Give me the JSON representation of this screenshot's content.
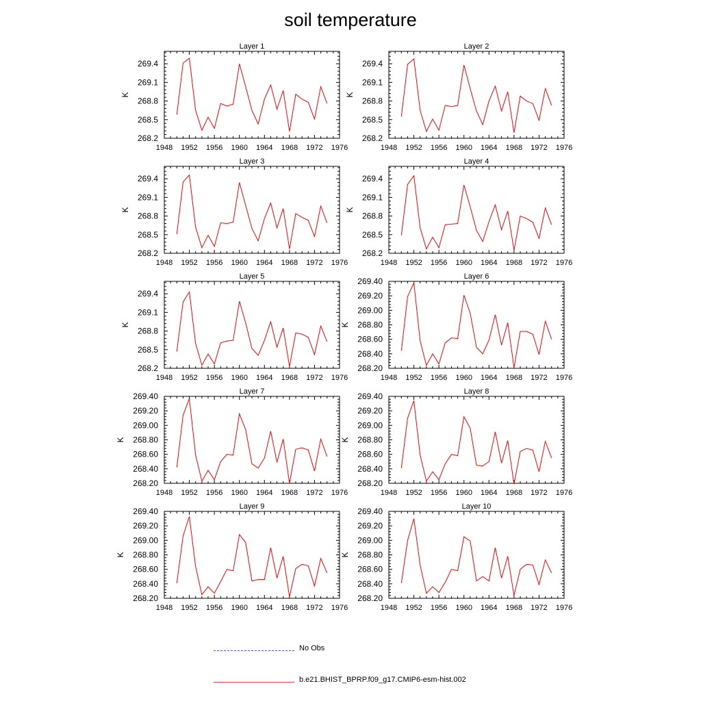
{
  "title": "soil temperature",
  "colors": {
    "model": "#ff0000",
    "obs": "#0000ff"
  },
  "legend": [
    {
      "label": "No Obs",
      "style": "dashed",
      "color": "#0000ff"
    },
    {
      "label": "b.e21.BHIST_BPRP.f09_g17.CMIP6-esm-hist.002",
      "style": "solid",
      "color": "#ff0000"
    }
  ],
  "chart_data": [
    {
      "type": "line",
      "title": "Layer 1",
      "ylabel": "K",
      "xlim": [
        1948,
        1976
      ],
      "ylim": [
        268.2,
        269.6
      ],
      "xticks": [
        "1948",
        "1952",
        "1956",
        "1960",
        "1964",
        "1968",
        "1972",
        "1976"
      ],
      "yticks": [
        "268.2",
        "268.5",
        "268.8",
        "269.1",
        "269.4"
      ],
      "x": [
        1950,
        1951,
        1952,
        1953,
        1954,
        1955,
        1956,
        1957,
        1958,
        1959,
        1960,
        1961,
        1962,
        1963,
        1964,
        1965,
        1966,
        1967,
        1968,
        1969,
        1970,
        1971,
        1972,
        1973,
        1974
      ],
      "series": [
        {
          "name": "b.e21.BHIST_BPRP.f09_g17.CMIP6-esm-hist.002",
          "values": [
            268.58,
            269.41,
            269.49,
            268.65,
            268.33,
            268.54,
            268.36,
            268.76,
            268.72,
            268.75,
            269.4,
            269.03,
            268.65,
            268.43,
            268.83,
            269.06,
            268.67,
            268.97,
            268.31,
            268.91,
            268.83,
            268.78,
            268.51,
            269.03,
            268.76
          ]
        }
      ]
    },
    {
      "type": "line",
      "title": "Layer 2",
      "ylabel": "K",
      "xlim": [
        1948,
        1976
      ],
      "ylim": [
        268.2,
        269.6
      ],
      "xticks": [
        "1948",
        "1952",
        "1956",
        "1960",
        "1964",
        "1968",
        "1972",
        "1976"
      ],
      "yticks": [
        "268.2",
        "268.5",
        "268.8",
        "269.1",
        "269.4"
      ],
      "x": [
        1950,
        1951,
        1952,
        1953,
        1954,
        1955,
        1956,
        1957,
        1958,
        1959,
        1960,
        1961,
        1962,
        1963,
        1964,
        1965,
        1966,
        1967,
        1968,
        1969,
        1970,
        1971,
        1972,
        1973,
        1974
      ],
      "series": [
        {
          "name": "b.e21.BHIST_BPRP.f09_g17.CMIP6-esm-hist.002",
          "values": [
            268.55,
            269.39,
            269.48,
            268.65,
            268.31,
            268.51,
            268.33,
            268.73,
            268.71,
            268.73,
            269.38,
            269.0,
            268.64,
            268.42,
            268.8,
            269.04,
            268.64,
            268.95,
            268.29,
            268.88,
            268.8,
            268.76,
            268.49,
            269.0,
            268.73
          ]
        }
      ]
    },
    {
      "type": "line",
      "title": "Layer 3",
      "ylabel": "K",
      "xlim": [
        1948,
        1976
      ],
      "ylim": [
        268.2,
        269.6
      ],
      "xticks": [
        "1948",
        "1952",
        "1956",
        "1960",
        "1964",
        "1968",
        "1972",
        "1976"
      ],
      "yticks": [
        "268.2",
        "268.5",
        "268.8",
        "269.1",
        "269.4"
      ],
      "x": [
        1950,
        1951,
        1952,
        1953,
        1954,
        1955,
        1956,
        1957,
        1958,
        1959,
        1960,
        1961,
        1962,
        1963,
        1964,
        1965,
        1966,
        1967,
        1968,
        1969,
        1970,
        1971,
        1972,
        1973,
        1974
      ],
      "series": [
        {
          "name": "b.e21.BHIST_BPRP.f09_g17.CMIP6-esm-hist.002",
          "values": [
            268.51,
            269.35,
            269.46,
            268.62,
            268.29,
            268.49,
            268.31,
            268.69,
            268.68,
            268.7,
            269.34,
            268.97,
            268.6,
            268.4,
            268.76,
            269.01,
            268.61,
            268.92,
            268.27,
            268.84,
            268.78,
            268.73,
            268.47,
            268.96,
            268.69
          ]
        }
      ]
    },
    {
      "type": "line",
      "title": "Layer 4",
      "ylabel": "K",
      "xlim": [
        1948,
        1976
      ],
      "ylim": [
        268.2,
        269.6
      ],
      "xticks": [
        "1948",
        "1952",
        "1956",
        "1960",
        "1964",
        "1968",
        "1972",
        "1976"
      ],
      "yticks": [
        "268.2",
        "268.5",
        "268.8",
        "269.1",
        "269.4"
      ],
      "x": [
        1950,
        1951,
        1952,
        1953,
        1954,
        1955,
        1956,
        1957,
        1958,
        1959,
        1960,
        1961,
        1962,
        1963,
        1964,
        1965,
        1966,
        1967,
        1968,
        1969,
        1970,
        1971,
        1972,
        1973,
        1974
      ],
      "series": [
        {
          "name": "b.e21.BHIST_BPRP.f09_g17.CMIP6-esm-hist.002",
          "values": [
            268.49,
            269.31,
            269.45,
            268.61,
            268.27,
            268.46,
            268.29,
            268.66,
            268.67,
            268.68,
            269.3,
            268.95,
            268.57,
            268.39,
            268.71,
            268.98,
            268.58,
            268.88,
            268.25,
            268.8,
            268.76,
            268.7,
            268.44,
            268.93,
            268.66
          ]
        }
      ]
    },
    {
      "type": "line",
      "title": "Layer 5",
      "ylabel": "K",
      "xlim": [
        1948,
        1976
      ],
      "ylim": [
        268.2,
        269.6
      ],
      "xticks": [
        "1948",
        "1952",
        "1956",
        "1960",
        "1964",
        "1968",
        "1972",
        "1976"
      ],
      "yticks": [
        "268.2",
        "268.5",
        "268.8",
        "269.1",
        "269.4"
      ],
      "x": [
        1950,
        1951,
        1952,
        1953,
        1954,
        1955,
        1956,
        1957,
        1958,
        1959,
        1960,
        1961,
        1962,
        1963,
        1964,
        1965,
        1966,
        1967,
        1968,
        1969,
        1970,
        1971,
        1972,
        1973,
        1974
      ],
      "series": [
        {
          "name": "b.e21.BHIST_BPRP.f09_g17.CMIP6-esm-hist.002",
          "values": [
            268.47,
            269.27,
            269.43,
            268.6,
            268.25,
            268.43,
            268.27,
            268.61,
            268.64,
            268.65,
            269.28,
            268.93,
            268.52,
            268.41,
            268.65,
            268.95,
            268.54,
            268.85,
            268.23,
            268.77,
            268.75,
            268.7,
            268.42,
            268.88,
            268.63
          ]
        }
      ]
    },
    {
      "type": "line",
      "title": "Layer 6",
      "ylabel": "K",
      "xlim": [
        1948,
        1976
      ],
      "ylim": [
        268.2,
        269.4
      ],
      "xticks": [
        "1948",
        "1952",
        "1956",
        "1960",
        "1964",
        "1968",
        "1972",
        "1976"
      ],
      "yticks": [
        "268.20",
        "268.40",
        "268.60",
        "268.80",
        "269.00",
        "269.20",
        "269.40"
      ],
      "x": [
        1950,
        1951,
        1952,
        1953,
        1954,
        1955,
        1956,
        1957,
        1958,
        1959,
        1960,
        1961,
        1962,
        1963,
        1964,
        1965,
        1966,
        1967,
        1968,
        1969,
        1970,
        1971,
        1972,
        1973,
        1974
      ],
      "series": [
        {
          "name": "b.e21.BHIST_BPRP.f09_g17.CMIP6-esm-hist.002",
          "values": [
            268.44,
            269.19,
            269.38,
            268.58,
            268.24,
            268.4,
            268.26,
            268.55,
            268.62,
            268.61,
            269.21,
            268.96,
            268.49,
            268.4,
            268.59,
            268.94,
            268.52,
            268.83,
            268.21,
            268.71,
            268.71,
            268.67,
            268.39,
            268.85,
            268.6
          ]
        }
      ]
    },
    {
      "type": "line",
      "title": "Layer 7",
      "ylabel": "K",
      "xlim": [
        1948,
        1976
      ],
      "ylim": [
        268.2,
        269.4
      ],
      "xticks": [
        "1948",
        "1952",
        "1956",
        "1960",
        "1964",
        "1968",
        "1972",
        "1976"
      ],
      "yticks": [
        "268.20",
        "268.40",
        "268.60",
        "268.80",
        "269.00",
        "269.20",
        "269.40"
      ],
      "x": [
        1950,
        1951,
        1952,
        1953,
        1954,
        1955,
        1956,
        1957,
        1958,
        1959,
        1960,
        1961,
        1962,
        1963,
        1964,
        1965,
        1966,
        1967,
        1968,
        1969,
        1970,
        1971,
        1972,
        1973,
        1974
      ],
      "series": [
        {
          "name": "b.e21.BHIST_BPRP.f09_g17.CMIP6-esm-hist.002",
          "values": [
            268.42,
            269.14,
            269.37,
            268.59,
            268.23,
            268.38,
            268.25,
            268.5,
            268.6,
            268.59,
            269.16,
            268.94,
            268.47,
            268.41,
            268.55,
            268.92,
            268.49,
            268.81,
            268.2,
            268.67,
            268.69,
            268.66,
            268.37,
            268.81,
            268.57
          ]
        }
      ]
    },
    {
      "type": "line",
      "title": "Layer 8",
      "ylabel": "K",
      "xlim": [
        1948,
        1976
      ],
      "ylim": [
        268.2,
        269.4
      ],
      "xticks": [
        "1948",
        "1952",
        "1956",
        "1960",
        "1964",
        "1968",
        "1972",
        "1976"
      ],
      "yticks": [
        "268.20",
        "268.40",
        "268.60",
        "268.80",
        "269.00",
        "269.20",
        "269.40"
      ],
      "x": [
        1950,
        1951,
        1952,
        1953,
        1954,
        1955,
        1956,
        1957,
        1958,
        1959,
        1960,
        1961,
        1962,
        1963,
        1964,
        1965,
        1966,
        1967,
        1968,
        1969,
        1970,
        1971,
        1972,
        1973,
        1974
      ],
      "series": [
        {
          "name": "b.e21.BHIST_BPRP.f09_g17.CMIP6-esm-hist.002",
          "values": [
            268.41,
            269.1,
            269.34,
            268.59,
            268.23,
            268.36,
            268.25,
            268.47,
            268.6,
            268.58,
            269.12,
            268.96,
            268.45,
            268.44,
            268.5,
            268.91,
            268.48,
            268.79,
            268.19,
            268.64,
            268.68,
            268.66,
            268.36,
            268.78,
            268.55
          ]
        }
      ]
    },
    {
      "type": "line",
      "title": "Layer 9",
      "ylabel": "K",
      "xlim": [
        1948,
        1976
      ],
      "ylim": [
        268.2,
        269.4
      ],
      "xticks": [
        "1948",
        "1952",
        "1956",
        "1960",
        "1964",
        "1968",
        "1972",
        "1976"
      ],
      "yticks": [
        "268.20",
        "268.40",
        "268.60",
        "268.80",
        "269.00",
        "269.20",
        "269.40"
      ],
      "x": [
        1950,
        1951,
        1952,
        1953,
        1954,
        1955,
        1956,
        1957,
        1958,
        1959,
        1960,
        1961,
        1962,
        1963,
        1964,
        1965,
        1966,
        1967,
        1968,
        1969,
        1970,
        1971,
        1972,
        1973,
        1974
      ],
      "series": [
        {
          "name": "b.e21.BHIST_BPRP.f09_g17.CMIP6-esm-hist.002",
          "values": [
            268.41,
            269.06,
            269.33,
            268.64,
            268.25,
            268.36,
            268.27,
            268.43,
            268.6,
            268.58,
            269.08,
            268.97,
            268.44,
            268.46,
            268.46,
            268.9,
            268.48,
            268.78,
            268.22,
            268.61,
            268.67,
            268.65,
            268.37,
            268.75,
            268.55
          ]
        }
      ]
    },
    {
      "type": "line",
      "title": "Layer 10",
      "ylabel": "K",
      "xlim": [
        1948,
        1976
      ],
      "ylim": [
        268.2,
        269.4
      ],
      "xticks": [
        "1948",
        "1952",
        "1956",
        "1960",
        "1964",
        "1968",
        "1972",
        "1976"
      ],
      "yticks": [
        "268.20",
        "268.40",
        "268.60",
        "268.80",
        "269.00",
        "269.20",
        "269.40"
      ],
      "x": [
        1950,
        1951,
        1952,
        1953,
        1954,
        1955,
        1956,
        1957,
        1958,
        1959,
        1960,
        1961,
        1962,
        1963,
        1964,
        1965,
        1966,
        1967,
        1968,
        1969,
        1970,
        1971,
        1972,
        1973,
        1974
      ],
      "series": [
        {
          "name": "b.e21.BHIST_BPRP.f09_g17.CMIP6-esm-hist.002",
          "values": [
            268.41,
            269.0,
            269.3,
            268.66,
            268.27,
            268.36,
            268.28,
            268.42,
            268.6,
            268.58,
            269.05,
            268.99,
            268.44,
            268.5,
            268.44,
            268.9,
            268.48,
            268.78,
            268.24,
            268.6,
            268.67,
            268.66,
            268.39,
            268.73,
            268.55
          ]
        }
      ]
    }
  ]
}
